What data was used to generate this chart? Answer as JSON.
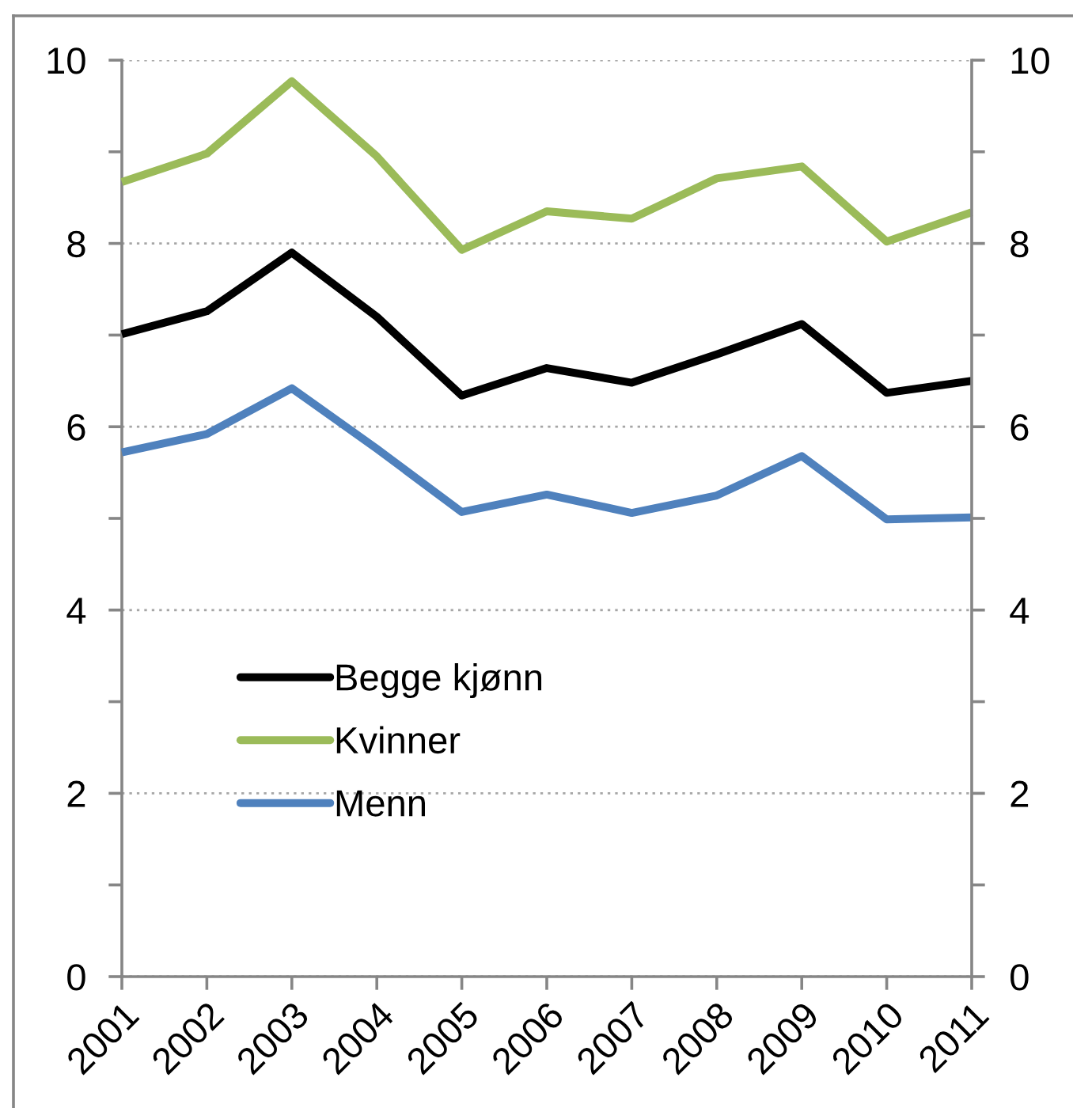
{
  "chart_data": {
    "type": "line",
    "categories": [
      "2001",
      "2002",
      "2003",
      "2004",
      "2005",
      "2006",
      "2007",
      "2008",
      "2009",
      "2010",
      "2011"
    ],
    "series": [
      {
        "name": "Begge kjønn",
        "color": "#000000",
        "values": [
          7.01,
          7.26,
          7.9,
          7.2,
          6.34,
          6.64,
          6.48,
          6.79,
          7.12,
          6.37,
          6.5
        ]
      },
      {
        "name": "Kvinner",
        "color": "#9bbb59",
        "values": [
          8.67,
          8.98,
          9.77,
          8.95,
          7.93,
          8.35,
          8.27,
          8.71,
          8.84,
          8.02,
          8.34
        ]
      },
      {
        "name": "Menn",
        "color": "#4f81bd",
        "values": [
          5.72,
          5.92,
          6.42,
          5.76,
          5.07,
          5.26,
          5.06,
          5.25,
          5.68,
          4.99,
          5.01
        ]
      }
    ],
    "ylim": [
      0,
      10
    ],
    "yticks": [
      0,
      {
        "value": 1,
        "label": null
      },
      2,
      {
        "value": 3,
        "label": null
      },
      4,
      {
        "value": 5,
        "label": null
      },
      6,
      {
        "value": 7,
        "label": null
      },
      8,
      {
        "value": 9,
        "label": null
      },
      10
    ],
    "y2lim": [
      0,
      10
    ],
    "y2ticks": [
      0,
      {
        "value": 1,
        "label": null
      },
      2,
      {
        "value": 3,
        "label": null
      },
      4,
      {
        "value": 5,
        "label": null
      },
      6,
      {
        "value": 7,
        "label": null
      },
      8,
      {
        "value": 9,
        "label": null
      },
      10
    ],
    "grid": "y",
    "legend": "lower left"
  }
}
